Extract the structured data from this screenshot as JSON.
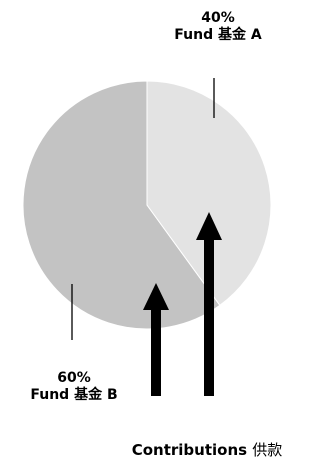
{
  "colors": {
    "fund_a": "#e3e3e3",
    "fund_b": "#c3c3c3",
    "arrow": "#000000",
    "background": "#ffffff"
  },
  "fund_a": {
    "percent": "40%",
    "name": "Fund 基金 A",
    "share": 0.4
  },
  "fund_b": {
    "percent": "60%",
    "name": "Fund 基金 B",
    "share": 0.6
  },
  "contributions": {
    "label_en": "Contributions",
    "label_zh": "供款"
  },
  "icons": {
    "arrow": "arrow-up-icon"
  }
}
